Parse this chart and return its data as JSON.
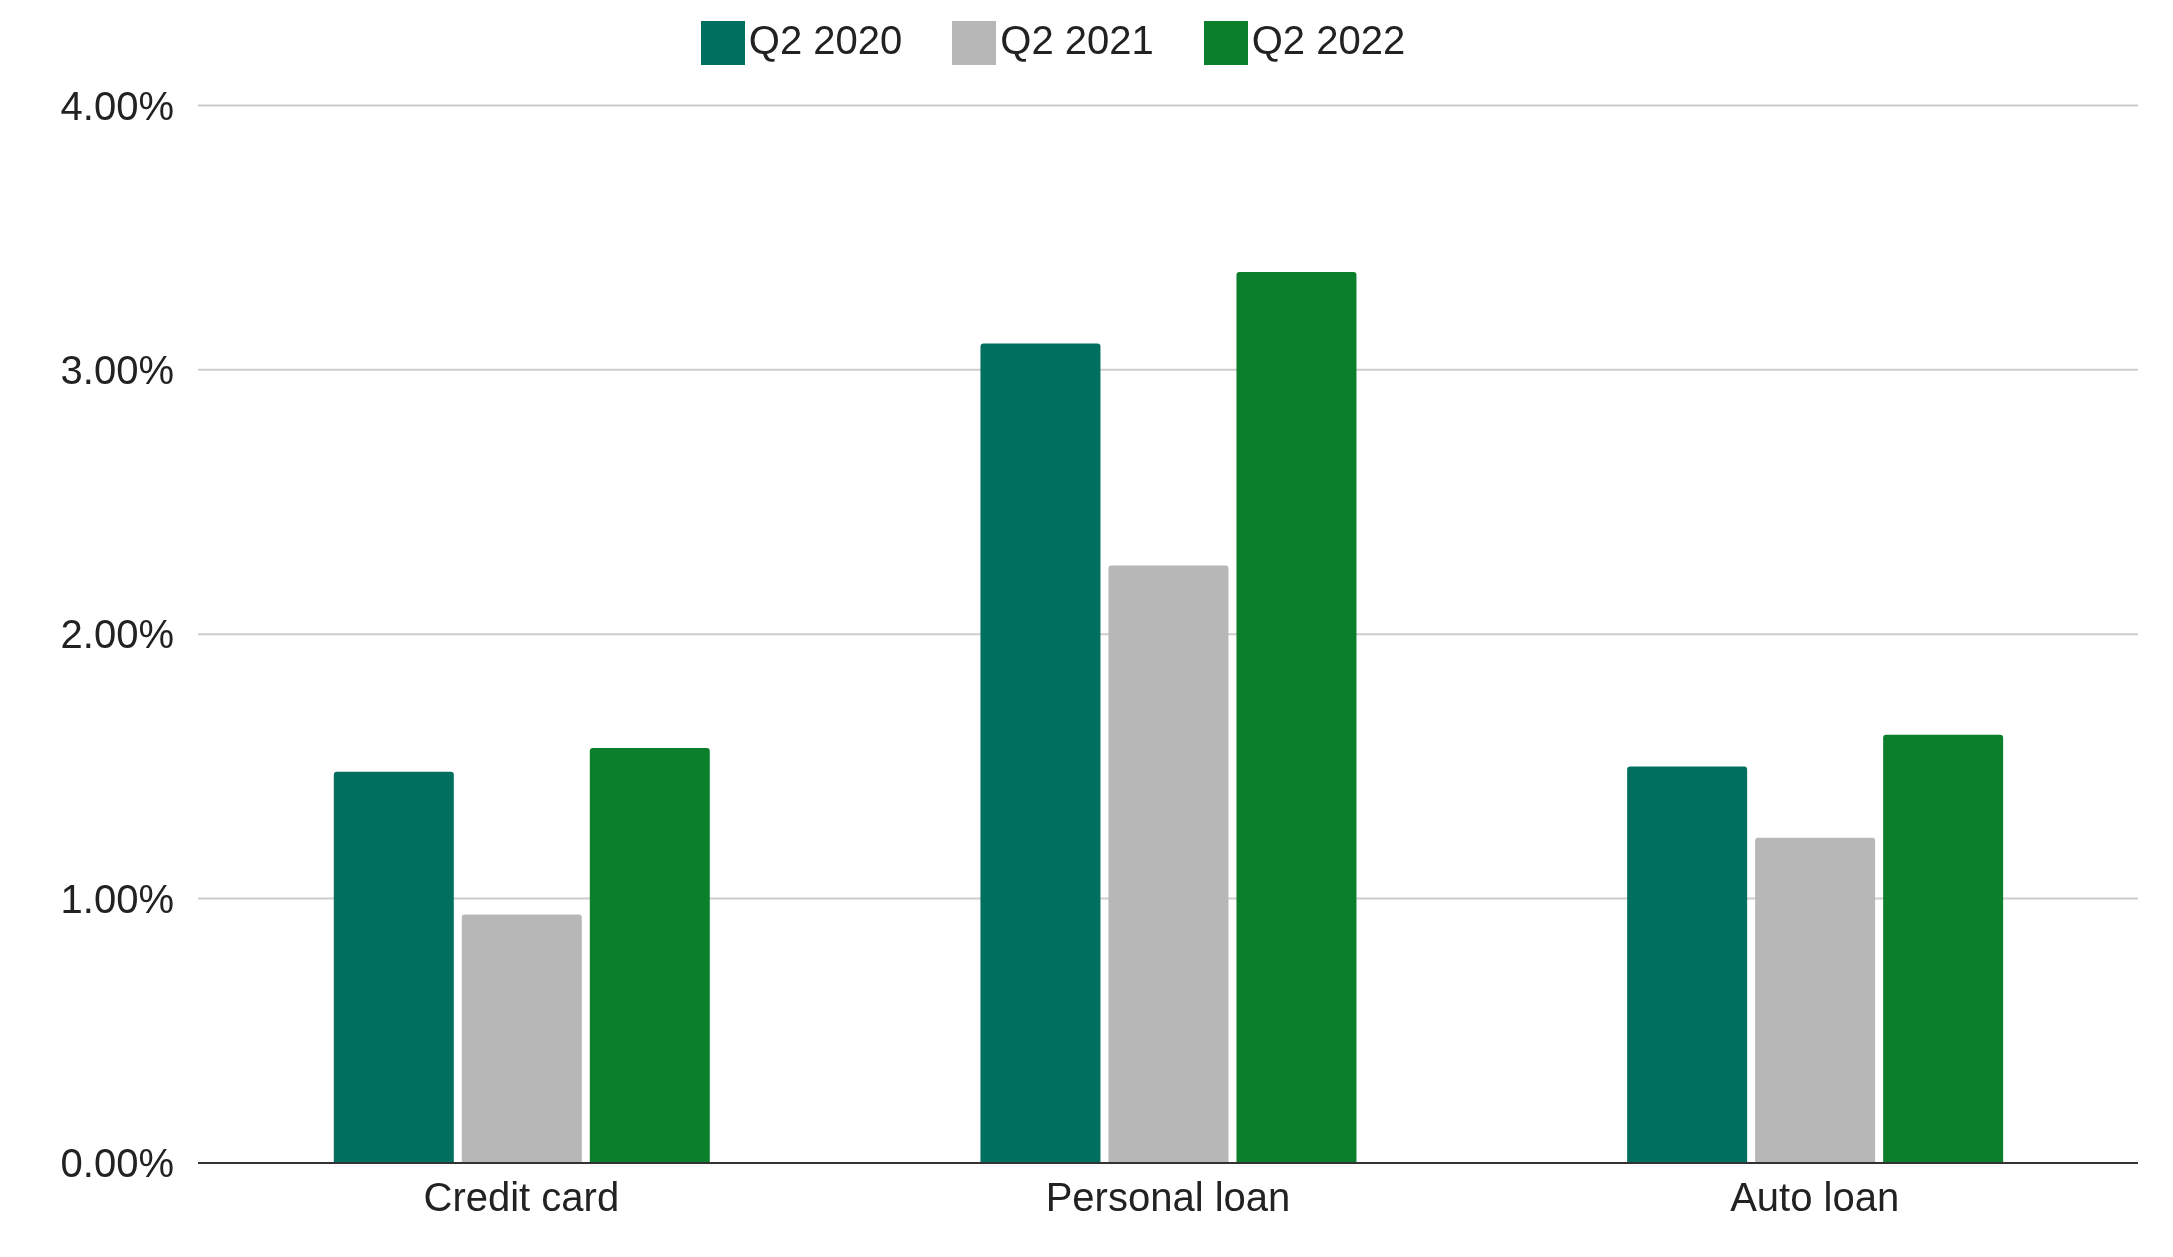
{
  "chart_data": {
    "type": "bar",
    "categories": [
      "Credit card",
      "Personal loan",
      "Auto loan"
    ],
    "series": [
      {
        "name": "Q2 2020",
        "color": "#006f5f",
        "values": [
          1.48,
          3.1,
          1.5
        ]
      },
      {
        "name": "Q2 2021",
        "color": "#b7b7b7",
        "values": [
          0.94,
          2.26,
          1.23
        ]
      },
      {
        "name": "Q2 2022",
        "color": "#0b7f2b",
        "values": [
          1.57,
          3.37,
          1.62
        ]
      }
    ],
    "ylim": [
      0,
      4
    ],
    "yticks": [
      {
        "value": 0,
        "label": "0.00%"
      },
      {
        "value": 1,
        "label": "1.00%"
      },
      {
        "value": 2,
        "label": "2.00%"
      },
      {
        "value": 3,
        "label": "3.00%"
      },
      {
        "value": 4,
        "label": "4.00%"
      }
    ],
    "grid": "y",
    "legend": "top"
  }
}
